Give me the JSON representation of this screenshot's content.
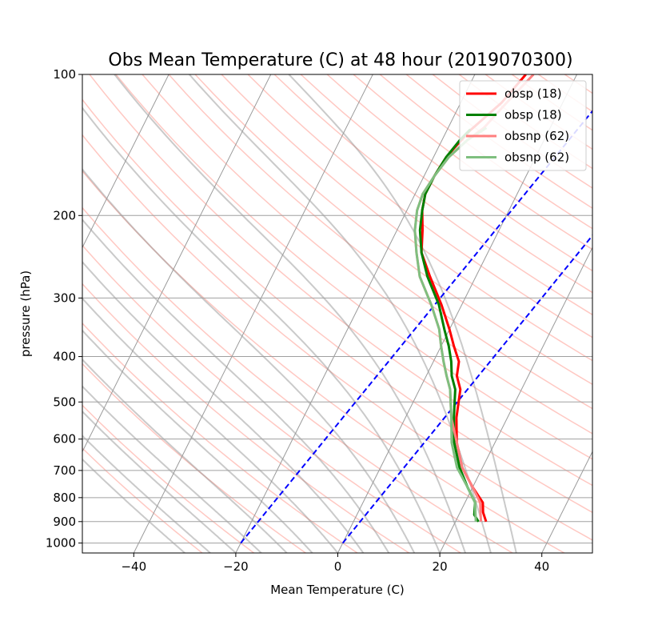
{
  "chart_data": {
    "type": "line",
    "title": "Obs Mean Temperature (C) at 48 hour (2019070300)",
    "xlabel": "Mean Temperature (C)",
    "ylabel": "pressure (hPa)",
    "xlim": [
      -50,
      50
    ],
    "ylim": [
      1050,
      100
    ],
    "yscale": "log",
    "skew": "skew-T log-P",
    "grid": true,
    "legend_position": "top-right",
    "x_ticks": [
      -40,
      -20,
      0,
      20,
      40
    ],
    "y_ticks": [
      1000,
      900,
      800,
      700,
      600,
      500,
      400,
      300,
      200,
      100
    ],
    "series": [
      {
        "name": "obsp (18)",
        "color": "#ff0000",
        "points": [
          [
            26,
            900
          ],
          [
            24.5,
            860
          ],
          [
            23.5,
            820
          ],
          [
            20,
            760
          ],
          [
            16,
            690
          ],
          [
            12.5,
            610
          ],
          [
            10,
            540
          ],
          [
            8,
            470
          ],
          [
            6,
            440
          ],
          [
            5,
            410
          ],
          [
            2.5,
            380
          ],
          [
            0,
            350
          ],
          [
            -4,
            310
          ],
          [
            -9,
            270
          ],
          [
            -13,
            240
          ],
          [
            -15,
            215
          ],
          [
            -17,
            195
          ],
          [
            -18,
            180
          ],
          [
            -18,
            165
          ],
          [
            -17.5,
            150
          ],
          [
            -15.5,
            132
          ],
          [
            -12,
            115
          ],
          [
            -10,
            100
          ]
        ]
      },
      {
        "name": "obsp (18)",
        "color": "#008000",
        "points": [
          [
            24.5,
            900
          ],
          [
            23,
            870
          ],
          [
            22,
            820
          ],
          [
            19,
            760
          ],
          [
            15.5,
            690
          ],
          [
            12,
            610
          ],
          [
            9.5,
            540
          ],
          [
            7,
            470
          ],
          [
            5,
            440
          ],
          [
            3.5,
            410
          ],
          [
            1.5,
            380
          ],
          [
            -1,
            350
          ],
          [
            -4.5,
            310
          ],
          [
            -9.5,
            270
          ],
          [
            -13,
            240
          ],
          [
            -15.5,
            215
          ],
          [
            -17,
            195
          ],
          [
            -18,
            180
          ],
          [
            -18,
            165
          ],
          [
            -17.5,
            150
          ],
          [
            -16.5,
            138
          ],
          [
            -15.5,
            131
          ]
        ]
      },
      {
        "name": "obsnp (62)",
        "color": "#ff7f7f",
        "points": [
          [
            25,
            900
          ],
          [
            24,
            860
          ],
          [
            23,
            820
          ],
          [
            20,
            760
          ],
          [
            16,
            690
          ],
          [
            12.5,
            610
          ],
          [
            9,
            540
          ],
          [
            6,
            470
          ],
          [
            4,
            440
          ],
          [
            2,
            410
          ],
          [
            0,
            380
          ],
          [
            -2,
            350
          ],
          [
            -6,
            310
          ],
          [
            -11,
            270
          ],
          [
            -14,
            240
          ],
          [
            -16.5,
            215
          ],
          [
            -18,
            195
          ],
          [
            -18.5,
            180
          ],
          [
            -18,
            165
          ],
          [
            -17,
            150
          ],
          [
            -15,
            138
          ],
          [
            -13,
            130
          ],
          [
            -11,
            115
          ],
          [
            -8.5,
            100
          ]
        ]
      },
      {
        "name": "obsnp (62)",
        "color": "#7fbf7f",
        "points": [
          [
            24,
            900
          ],
          [
            23,
            860
          ],
          [
            22,
            820
          ],
          [
            19,
            760
          ],
          [
            15,
            690
          ],
          [
            11.5,
            610
          ],
          [
            9,
            540
          ],
          [
            6,
            470
          ],
          [
            4,
            440
          ],
          [
            2,
            410
          ],
          [
            0,
            380
          ],
          [
            -2,
            350
          ],
          [
            -6,
            310
          ],
          [
            -11,
            270
          ],
          [
            -14,
            240
          ],
          [
            -16.5,
            215
          ],
          [
            -18,
            195
          ],
          [
            -18.5,
            180
          ],
          [
            -18,
            165
          ],
          [
            -17,
            150
          ],
          [
            -15,
            138
          ],
          [
            -12.5,
            130
          ]
        ]
      }
    ]
  }
}
